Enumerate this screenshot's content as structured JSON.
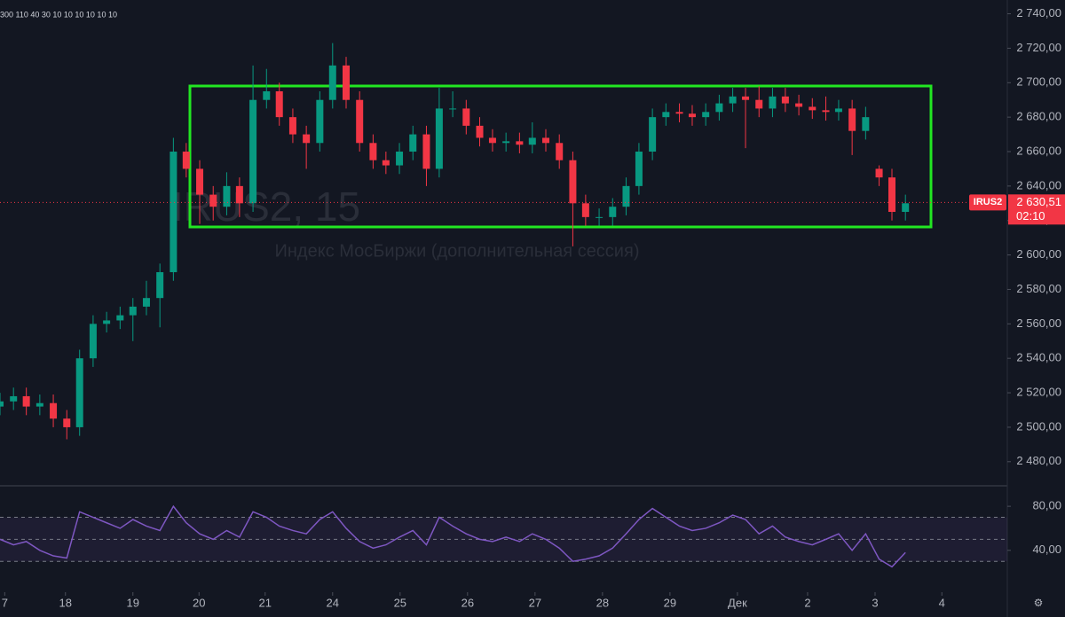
{
  "toolbar_text": "300 110 40 30 10 10 10 10 10 10",
  "chart_data": [
    {
      "type": "candlestick",
      "title": "IRUS2, 15",
      "subtitle": "Индекс МосБиржи (дополнительная сессия)",
      "symbol": "IRUS2",
      "last_price": {
        "value": 2630.51,
        "label": "2 630,51"
      },
      "countdown": "02:10",
      "up_color": "#089981",
      "down_color": "#f23645",
      "x": [
        0,
        0.2,
        0.39,
        0.59,
        0.79,
        0.99,
        1.18,
        1.38,
        1.58,
        1.78,
        1.97,
        2.17,
        2.37,
        2.57,
        2.76,
        2.96,
        3.16,
        3.36,
        3.55,
        3.75,
        3.95,
        4.14,
        4.34,
        4.54,
        4.74,
        4.93,
        5.13,
        5.33,
        5.53,
        5.72,
        5.92,
        6.12,
        6.32,
        6.51,
        6.71,
        6.91,
        7.11,
        7.3,
        7.5,
        7.7,
        7.89,
        8.09,
        8.29,
        8.49,
        8.68,
        8.88,
        9.08,
        9.28,
        9.47,
        9.67,
        9.87,
        10.07,
        10.26,
        10.46,
        10.66,
        10.86,
        11.05,
        11.25,
        11.45,
        11.64,
        11.84,
        12.04,
        12.24,
        12.43,
        12.63,
        12.83,
        13.03,
        13.22,
        13.42
      ],
      "open": [
        2512,
        2515,
        2518,
        2512,
        2514,
        2505,
        2500,
        2540,
        2560,
        2562,
        2565,
        2570,
        2575,
        2590,
        2660,
        2650,
        2635,
        2628,
        2640,
        2630,
        2690,
        2695,
        2680,
        2670,
        2665,
        2690,
        2710,
        2690,
        2665,
        2655,
        2652,
        2660,
        2670,
        2650,
        2685,
        2685,
        2675,
        2668,
        2665,
        2666,
        2664,
        2668,
        2665,
        2655,
        2630,
        2622,
        2622,
        2628,
        2640,
        2660,
        2680,
        2683,
        2682,
        2680,
        2683,
        2688,
        2692,
        2690,
        2685,
        2692,
        2688,
        2686,
        2684,
        2683,
        2685,
        2672,
        2650,
        2645,
        2625
      ],
      "high": [
        2520,
        2523,
        2523,
        2519,
        2519,
        2510,
        2545,
        2565,
        2567,
        2570,
        2575,
        2585,
        2595,
        2668,
        2665,
        2655,
        2640,
        2648,
        2645,
        2710,
        2708,
        2700,
        2685,
        2675,
        2695,
        2723,
        2715,
        2695,
        2670,
        2660,
        2665,
        2675,
        2675,
        2697,
        2695,
        2690,
        2680,
        2673,
        2671,
        2671,
        2677,
        2673,
        2670,
        2660,
        2635,
        2627,
        2633,
        2645,
        2665,
        2685,
        2688,
        2688,
        2687,
        2688,
        2693,
        2697,
        2697,
        2698,
        2697,
        2697,
        2693,
        2691,
        2692,
        2690,
        2690,
        2686,
        2652,
        2650,
        2635
      ],
      "low": [
        2507,
        2510,
        2507,
        2507,
        2500,
        2493,
        2495,
        2535,
        2555,
        2557,
        2550,
        2565,
        2558,
        2585,
        2645,
        2618,
        2620,
        2623,
        2622,
        2625,
        2685,
        2675,
        2665,
        2650,
        2660,
        2685,
        2685,
        2660,
        2650,
        2647,
        2647,
        2655,
        2640,
        2645,
        2680,
        2670,
        2663,
        2660,
        2660,
        2659,
        2659,
        2660,
        2650,
        2605,
        2617,
        2617,
        2617,
        2623,
        2635,
        2655,
        2675,
        2677,
        2675,
        2675,
        2678,
        2683,
        2662,
        2680,
        2680,
        2683,
        2681,
        2679,
        2678,
        2678,
        2658,
        2667,
        2640,
        2620,
        2620
      ],
      "close": [
        2515,
        2518,
        2512,
        2514,
        2505,
        2500,
        2540,
        2560,
        2562,
        2565,
        2570,
        2575,
        2590,
        2660,
        2650,
        2635,
        2628,
        2640,
        2630,
        2690,
        2695,
        2680,
        2670,
        2665,
        2690,
        2710,
        2690,
        2665,
        2655,
        2652,
        2660,
        2670,
        2650,
        2685,
        2685,
        2675,
        2668,
        2665,
        2666,
        2664,
        2668,
        2665,
        2655,
        2630,
        2622,
        2622,
        2628,
        2640,
        2660,
        2680,
        2683,
        2682,
        2680,
        2683,
        2688,
        2692,
        2690,
        2685,
        2692,
        2688,
        2686,
        2684,
        2683,
        2685,
        2672,
        2680,
        2645,
        2625,
        2630
      ],
      "xlim": [
        0,
        14.93
      ],
      "ylim": [
        2466,
        2748
      ],
      "xticks": [
        {
          "value": 0.07,
          "label": "7"
        },
        {
          "value": 0.97,
          "label": "18"
        },
        {
          "value": 1.97,
          "label": "19"
        },
        {
          "value": 2.95,
          "label": "20"
        },
        {
          "value": 3.93,
          "label": "21"
        },
        {
          "value": 4.93,
          "label": "24"
        },
        {
          "value": 5.93,
          "label": "25"
        },
        {
          "value": 6.93,
          "label": "26"
        },
        {
          "value": 7.93,
          "label": "27"
        },
        {
          "value": 8.93,
          "label": "28"
        },
        {
          "value": 9.93,
          "label": "29"
        },
        {
          "value": 10.93,
          "label": "Дек"
        },
        {
          "value": 11.97,
          "label": "2"
        },
        {
          "value": 12.97,
          "label": "3"
        },
        {
          "value": 13.96,
          "label": "4"
        }
      ],
      "yticks": [
        {
          "value": 2740,
          "label": "2 740,00"
        },
        {
          "value": 2720,
          "label": "2 720,00"
        },
        {
          "value": 2700,
          "label": "2 700,00"
        },
        {
          "value": 2680,
          "label": "2 680,00"
        },
        {
          "value": 2660,
          "label": "2 660,00"
        },
        {
          "value": 2640,
          "label": "2 640,00"
        },
        {
          "value": 2620,
          "label": "2 620,00"
        },
        {
          "value": 2600,
          "label": "2 600,00"
        },
        {
          "value": 2580,
          "label": "2 580,00"
        },
        {
          "value": 2560,
          "label": "2 560,00"
        },
        {
          "value": 2540,
          "label": "2 540,00"
        },
        {
          "value": 2520,
          "label": "2 520,00"
        },
        {
          "value": 2500,
          "label": "2 500,00"
        },
        {
          "value": 2480,
          "label": "2 480,00"
        }
      ]
    },
    {
      "type": "line",
      "color": "#7e57c2",
      "values": [
        50,
        45,
        48,
        40,
        35,
        33,
        75,
        70,
        65,
        60,
        68,
        62,
        58,
        80,
        65,
        55,
        50,
        58,
        52,
        75,
        70,
        62,
        58,
        55,
        68,
        75,
        60,
        48,
        42,
        45,
        52,
        58,
        45,
        70,
        62,
        55,
        50,
        48,
        52,
        48,
        55,
        50,
        42,
        30,
        32,
        35,
        42,
        55,
        68,
        78,
        70,
        62,
        58,
        60,
        65,
        72,
        68,
        55,
        62,
        52,
        48,
        45,
        50,
        55,
        40,
        55,
        32,
        25,
        38
      ],
      "levels": [
        70,
        50,
        30
      ],
      "ylim": [
        2,
        97
      ],
      "yticks": [
        {
          "value": 80,
          "label": "80,00"
        },
        {
          "value": 40,
          "label": "40,00"
        }
      ]
    }
  ]
}
